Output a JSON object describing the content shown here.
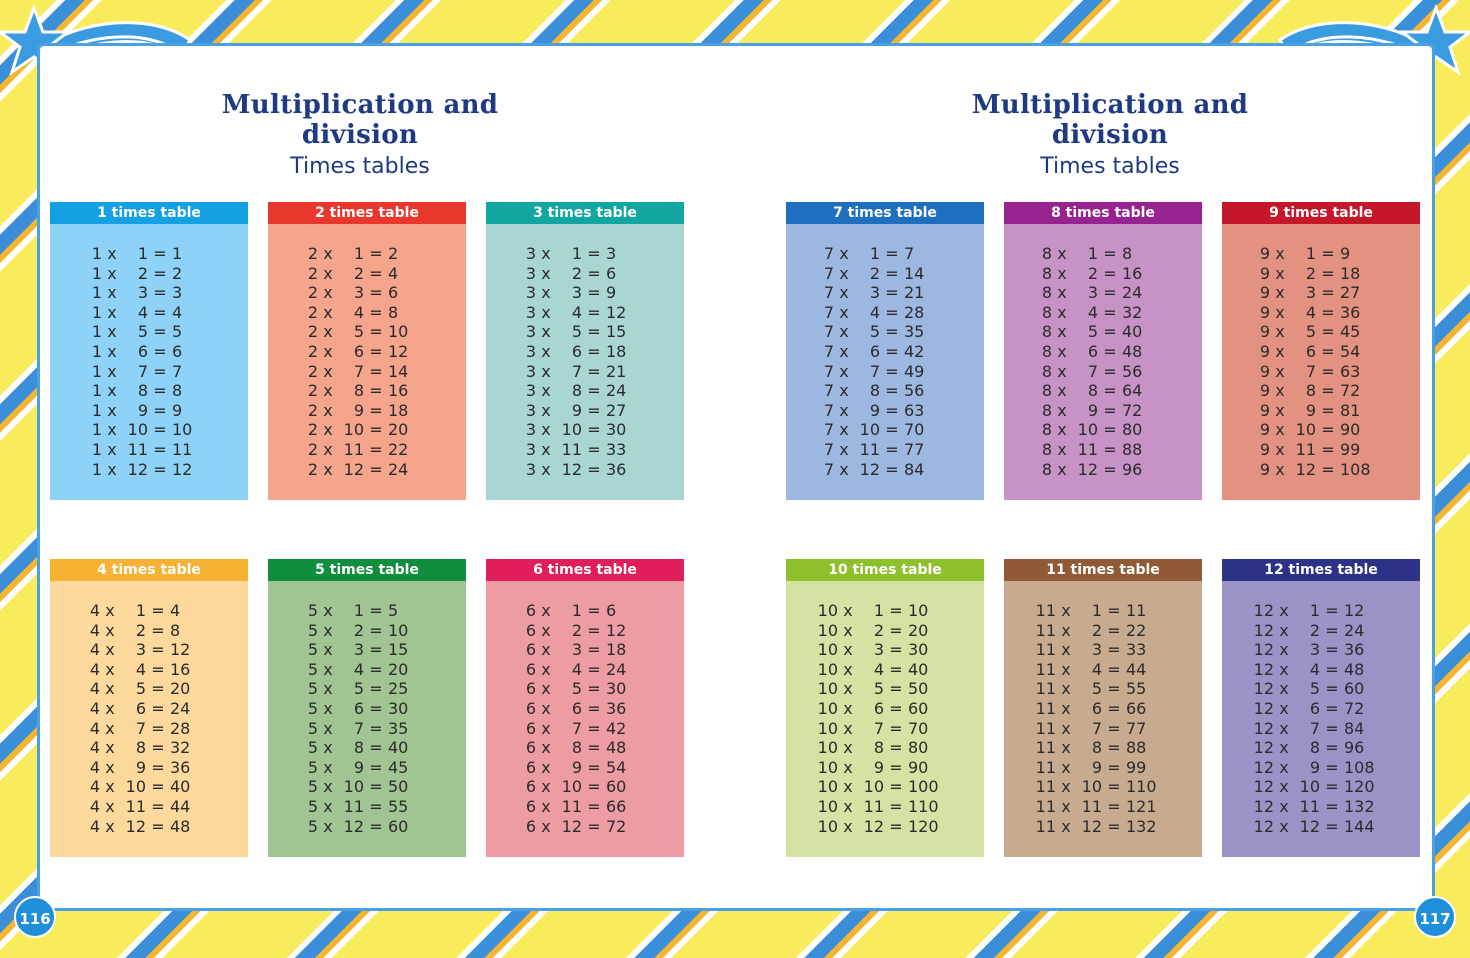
{
  "colors": {
    "title": "#1d3a82",
    "frame_yellow": "#f9ec5c",
    "frame_blue": "#3a8fd8",
    "page_badge": "#1e8fd8"
  },
  "left_page": {
    "title": "Multiplication and division",
    "subtitle": "Times tables",
    "page_number": "116"
  },
  "right_page": {
    "title": "Multiplication and division",
    "subtitle": "Times tables",
    "page_number": "117"
  },
  "icons": [
    "shooting-star-icon"
  ],
  "tables": [
    {
      "n": 1,
      "label": "1 times table",
      "header_color": "#14a0e3",
      "body_color": "#8ed2f7"
    },
    {
      "n": 2,
      "label": "2 times table",
      "header_color": "#e8382d",
      "body_color": "#f4a58c"
    },
    {
      "n": 3,
      "label": "3 times table",
      "header_color": "#12a6a0",
      "body_color": "#a9d5d3"
    },
    {
      "n": 4,
      "label": "4 times table",
      "header_color": "#f5b233",
      "body_color": "#fdd99e"
    },
    {
      "n": 5,
      "label": "5 times table",
      "header_color": "#0f8f3d",
      "body_color": "#a0c592"
    },
    {
      "n": 6,
      "label": "6 times table",
      "header_color": "#e01f5a",
      "body_color": "#ec9ca2"
    },
    {
      "n": 7,
      "label": "7 times table",
      "header_color": "#1e6fc0",
      "body_color": "#9cb7e0"
    },
    {
      "n": 8,
      "label": "8 times table",
      "header_color": "#962390",
      "body_color": "#c792c6"
    },
    {
      "n": 9,
      "label": "9 times table",
      "header_color": "#c4182a",
      "body_color": "#e39180"
    },
    {
      "n": 10,
      "label": "10 times table",
      "header_color": "#8ec02c",
      "body_color": "#d4e3a3"
    },
    {
      "n": 11,
      "label": "11 times table",
      "header_color": "#8f5a35",
      "body_color": "#c8ab8f"
    },
    {
      "n": 12,
      "label": "12 times table",
      "header_color": "#2c3285",
      "body_color": "#9a93c6"
    }
  ]
}
